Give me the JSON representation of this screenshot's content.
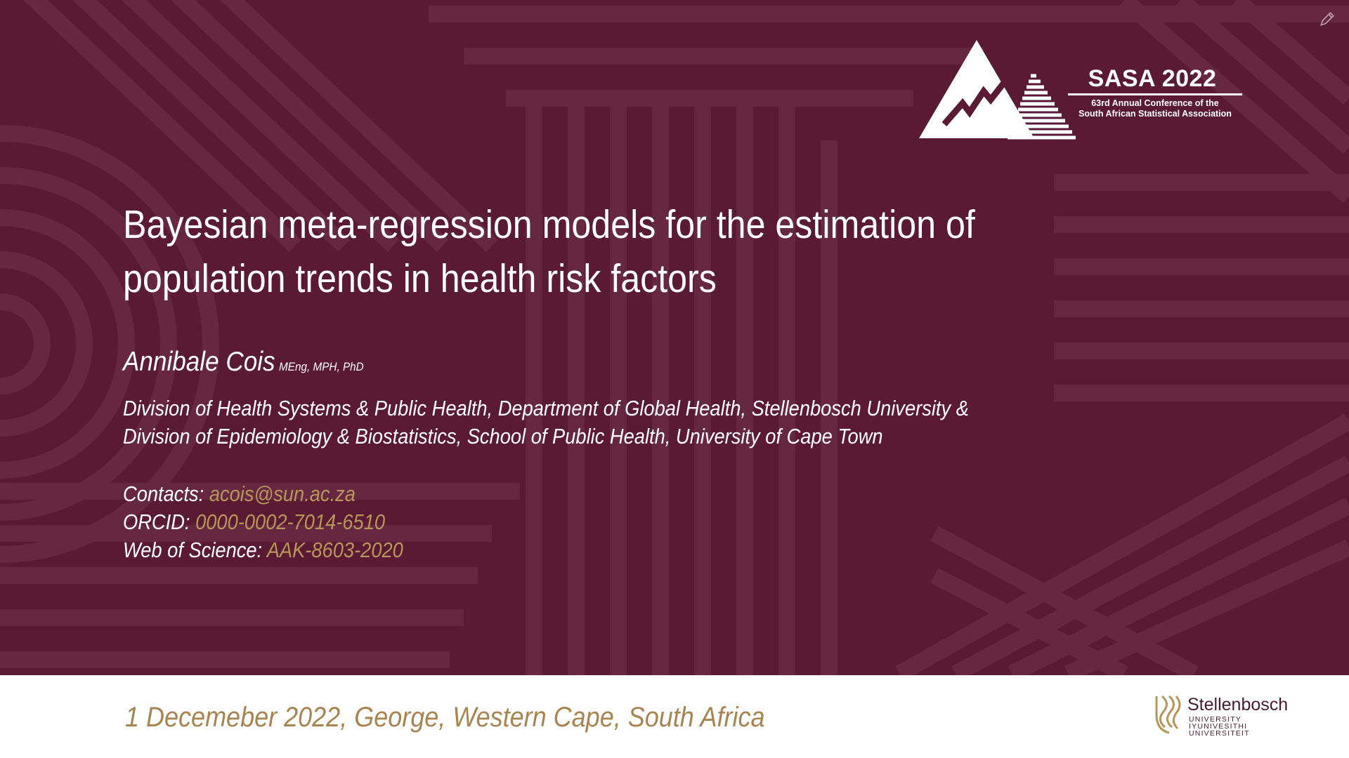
{
  "slide": {
    "background_color": "#5a1a34",
    "accent_color": "#b8965a",
    "conference_logo": {
      "title": "SASA 2022",
      "subtitle_line1": "63rd Annual Conference of the",
      "subtitle_line2": "South African Statistical Association"
    },
    "title_line1": "Bayesian meta-regression models for the estimation of",
    "title_line2": "population trends in health risk factors",
    "author": {
      "name": "Annibale Cois",
      "degrees": "MEng, MPH, PhD"
    },
    "affiliations": [
      "Division of Health Systems & Public Health, Department of Global Health, Stellenbosch University &",
      "Division of Epidemiology & Biostatistics, School of Public Health, University of Cape Town"
    ],
    "contacts": [
      {
        "label": "Contacts: ",
        "value": "acois@sun.ac.za"
      },
      {
        "label": "ORCID: ",
        "value": "0000-0002-7014-6510"
      },
      {
        "label": "Web of Science: ",
        "value": "AAK-8603-2020"
      }
    ]
  },
  "footer": {
    "date_location": "1 Decemeber 2022, George, Western Cape, South Africa",
    "university_logo": {
      "name": "Stellenbosch",
      "line1": "UNIVERSITY",
      "line2": "IYUNIVESITHI",
      "line3": "UNIVERSITEIT"
    }
  },
  "icons": {
    "edit": "pencil-icon",
    "conference": "mountain-arrow-icon",
    "university": "stellenbosch-crest-icon"
  }
}
